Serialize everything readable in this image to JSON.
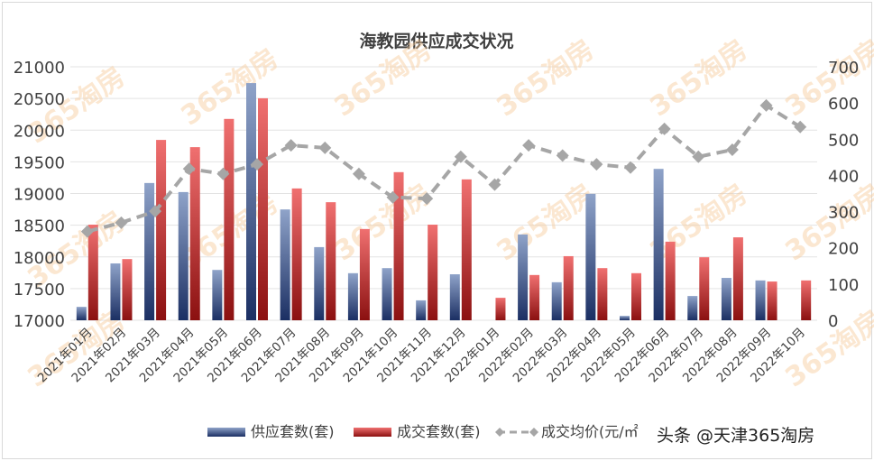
{
  "chart_data": {
    "type": "bar+line",
    "title": "海教园供应成交状况",
    "categories": [
      "2021年01月",
      "2021年02月",
      "2021年03月",
      "2021年04月",
      "2021年05月",
      "2021年06月",
      "2021年07月",
      "2021年08月",
      "2021年09月",
      "2021年10月",
      "2021年11月",
      "2021年12月",
      "2022年01月",
      "2022年02月",
      "2022年03月",
      "2022年04月",
      "2022年05月",
      "2022年06月",
      "2022年07月",
      "2022年08月",
      "2022年09月",
      "2022年10月"
    ],
    "series": [
      {
        "name": "供应套数(套)",
        "type": "bar",
        "axis": "right",
        "color": "#2f4f8f",
        "values": [
          37,
          157,
          379,
          354,
          139,
          655,
          306,
          202,
          130,
          144,
          55,
          127,
          0,
          237,
          105,
          349,
          12,
          418,
          67,
          117,
          110,
          0
        ]
      },
      {
        "name": "成交套数(套)",
        "type": "bar",
        "axis": "right",
        "color": "#d63c3c",
        "values": [
          264,
          169,
          498,
          478,
          556,
          613,
          364,
          326,
          252,
          409,
          264,
          389,
          62,
          125,
          177,
          144,
          130,
          217,
          174,
          229,
          107,
          110
        ]
      },
      {
        "name": "成交均价(元/㎡",
        "type": "line",
        "axis": "left",
        "color": "#a6a6a6",
        "style": "dashed",
        "marker": "diamond",
        "values": [
          18400,
          18540,
          18720,
          19390,
          19310,
          19460,
          19760,
          19720,
          19310,
          18940,
          18920,
          19580,
          19140,
          19760,
          19600,
          19460,
          19410,
          20020,
          19580,
          19690,
          20390,
          20050
        ]
      }
    ],
    "left_axis": {
      "min": 17000,
      "max": 21000,
      "step": 500,
      "ticks": [
        "17000",
        "17500",
        "18000",
        "18500",
        "19000",
        "19500",
        "20000",
        "20500",
        "21000"
      ]
    },
    "right_axis": {
      "min": 0,
      "max": 700,
      "step": 100,
      "ticks": [
        "0",
        "100",
        "200",
        "300",
        "400",
        "500",
        "600",
        "700"
      ]
    },
    "grid": true,
    "legend": "bottom"
  },
  "watermark": {
    "logo": "365淘房",
    "credit": "头条 @天津365淘房"
  }
}
